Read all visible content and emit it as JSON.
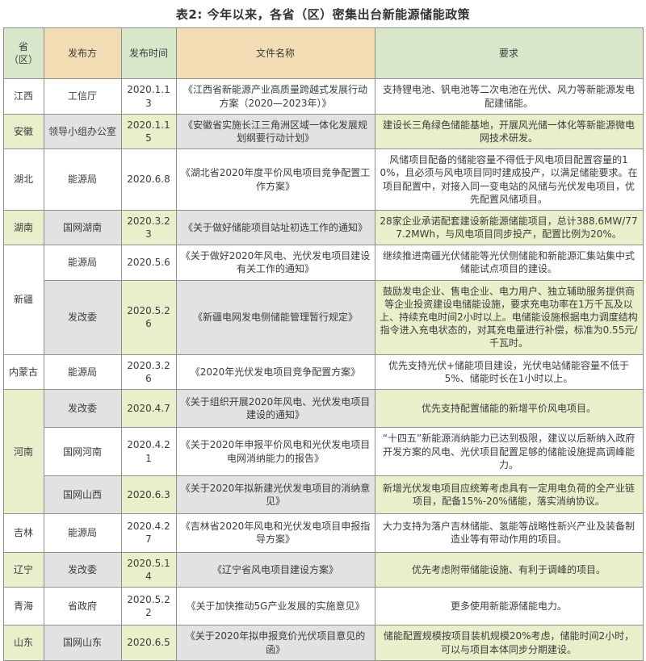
{
  "title": "表2: 今年以来，各省（区）密集出台新能源储能政策",
  "colors": {
    "header_green": "#d8e7ca",
    "header_tan": "#f2dcb3",
    "row_alt_green": "#eaeeca",
    "row_alt_grey": "#e2e2e2",
    "border": "#8f8f8f",
    "text": "#3c3c3c"
  },
  "table": {
    "headers": {
      "province": "省（区）",
      "publisher": "发布方",
      "date": "发布时间",
      "document": "文件名称",
      "requirement": "要求"
    },
    "rows": [
      {
        "province": "江西",
        "publisher": "工信厅",
        "date": "2020.1.13",
        "document": "《江西省新能源产业高质量跨越式发展行动方案（2020—2023年）》",
        "requirement": "支持锂电池、钒电池等二次电池在光伏、风力等新能源发电配建储能。"
      },
      {
        "province": "安徽",
        "publisher": "领导小组办公室",
        "date": "2020.1.15",
        "document": "《安徽省实施长江三角洲区域一体化发展规划纲要行动计划》",
        "requirement": "建设长三角绿色储能基地，开展风光储一体化等新能源微电网技术研发。"
      },
      {
        "province": "湖北",
        "publisher": "能源局",
        "date": "2020.6.8",
        "document": "《湖北省2020年度平价风电项目竞争配置工作方案》",
        "requirement": "风储项目配备的储能容量不得低于风电项目配置容量的10%，且必须与风电项目同时建成投产，以满足储能要求。在项目配置中，对接入同一变电站的风储与光伏发电项目，优先配置风储项目。"
      },
      {
        "province": "湖南",
        "publisher": "国网湖南",
        "date": "2020.3.23",
        "document": "《关于做好储能项目站址初选工作的通知》",
        "requirement": "28家企业承诺配套建设新能源储能项目，总计388.6MW/777.2MWh，与风电项目同步投产，配置比例为20%。"
      },
      {
        "province": "新疆",
        "publisher": "能源局",
        "date": "2020.5.6",
        "document": "《关于做好2020年风电、光伏发电项目建设有关工作的通知》",
        "requirement": "继续推进南疆光伏储能等光伏侧储能和新能源汇集站集中式储能试点项目的建设。"
      },
      {
        "publisher": "发改委",
        "date": "2020.5.26",
        "document": "《新疆电网发电侧储能管理暂行规定》",
        "requirement": "鼓励发电企业、售电企业、电力用户、独立辅助服务提供商等企业投资建设电储能设施，要求充电功率在1万千瓦及以上、持续充电时间2小时以上。电储能设施根据电力调度结构指令进入充电状态的，对其充电量进行补偿，标准为0.55元/千瓦时。"
      },
      {
        "province": "内蒙古",
        "publisher": "能源局",
        "date": "2020.3.26",
        "document": "《2020年光伏发电项目竞争配置方案》",
        "requirement": "优先支持光伏+储能项目建设，光伏电站储能容量不低于5%、储能时长在1小时以上。"
      },
      {
        "province": "河南",
        "publisher": "发改委",
        "date": "2020.4.7",
        "document": "《关于组织开展2020年风电、光伏发电项目建设的通知》",
        "requirement": "优先支持配置储能的新增平价风电项目。"
      },
      {
        "publisher": "国网河南",
        "date": "2020.4.21",
        "document": "《关于2020年申报平价风电和光伏发电项目电网消纳能力的报告》",
        "requirement": "“十四五”新能源消纳能力已达到极限，建议以后新纳入政府开发方案的风电、光伏项目配置足够的储能设施提高调峰能力。"
      },
      {
        "publisher": "国网山西",
        "date": "2020.6.3",
        "document": "《关于2020年拟新建光伏发电项目的消纳意见》",
        "requirement": "新增光伏发电项目应统筹考虑具有一定用电负荷的全产业链项目，配备15%-20%储能，落实消纳协议。"
      },
      {
        "province": "吉林",
        "publisher": "能源局",
        "date": "2020.4.27",
        "document": "《吉林省2020年风电和光伏发电项目申报指导方案》",
        "requirement": "大力支持为落户吉林储能、氢能等战略性新兴产业及装备制造业等有带动作用的项目。"
      },
      {
        "province": "辽宁",
        "publisher": "发改委",
        "date": "2020.5.14",
        "document": "《辽宁省风电项目建设方案》",
        "requirement": "优先考虑附带储能设施、有利于调峰的项目。"
      },
      {
        "province": "青海",
        "publisher": "省政府",
        "date": "2020.5.22",
        "document": "《关于加快推动5G产业发展的实施意见》",
        "requirement": "更多使用新能源储能电力。"
      },
      {
        "province": "山东",
        "publisher": "国网山东",
        "date": "2020.6.5",
        "document": "《关于2020年拟申报竞价光伏项目意见的函》",
        "requirement": "储能配置规模按项目装机规模20%考虑，储能时间2小时，可以与项目本体同步分期建设。"
      }
    ]
  }
}
